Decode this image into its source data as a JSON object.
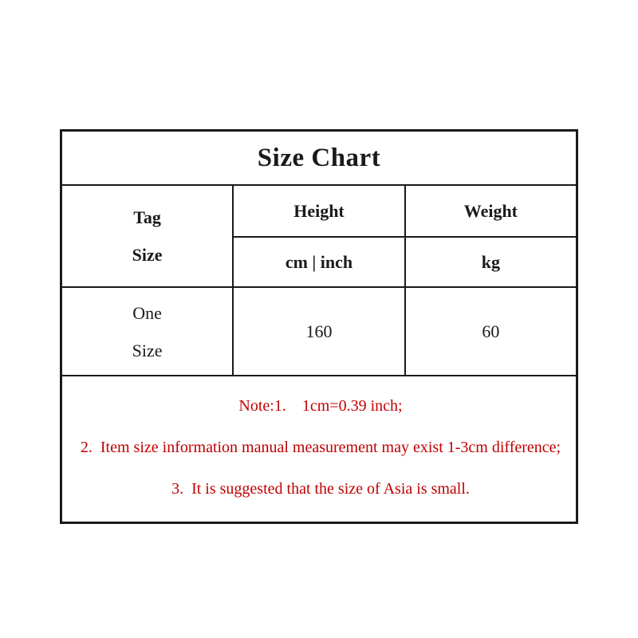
{
  "table": {
    "title": "Size Chart",
    "tag_size_label": "Tag\nSize",
    "columns": [
      {
        "label": "Height",
        "unit": "cm | inch"
      },
      {
        "label": "Weight",
        "unit": "kg"
      }
    ],
    "rows": [
      {
        "size": "One\nSize",
        "height": "160",
        "weight": "60"
      }
    ]
  },
  "notes": [
    "Note:1.    1cm=0.39 inch;",
    "2.  Item size information manual measurement may exist 1-3cm difference;",
    "3.  It is suggested that the size of Asia is small."
  ],
  "colors": {
    "text": "#1a1a1a",
    "border": "#1a1a1a",
    "note_red": "#c00000",
    "background": "#ffffff"
  },
  "chart_data": {
    "type": "table",
    "title": "Size Chart",
    "columns": [
      "Tag Size",
      "Height (cm | inch)",
      "Weight (kg)"
    ],
    "rows": [
      [
        "One Size",
        "160",
        "60"
      ]
    ]
  }
}
